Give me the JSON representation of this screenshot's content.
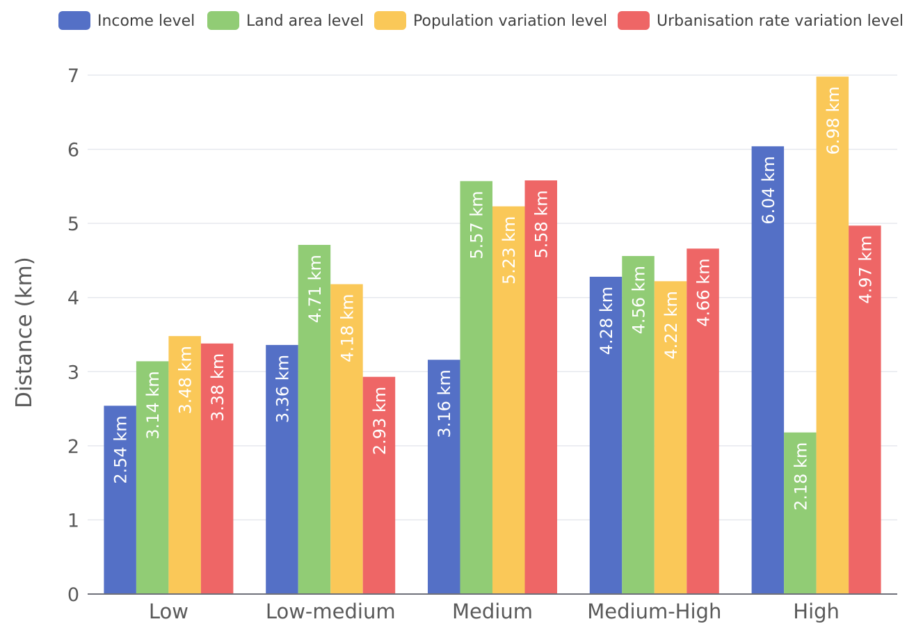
{
  "chart_data": {
    "type": "bar",
    "title": "",
    "xlabel": "",
    "ylabel": "Distance (km)",
    "ylim": [
      0,
      7
    ],
    "yticks": [
      "0",
      "1",
      "2",
      "3",
      "4",
      "5",
      "6",
      "7"
    ],
    "grid": true,
    "legend_position": "top",
    "categories": [
      "Low",
      "Low-medium",
      "Medium",
      "Medium-High",
      "High"
    ],
    "series": [
      {
        "name": "Income level",
        "color": "#5470c6",
        "values": [
          2.54,
          3.36,
          3.16,
          4.28,
          6.04
        ],
        "labels": [
          "2.54 km",
          "3.36 km",
          "3.16 km",
          "4.28 km",
          "6.04 km"
        ]
      },
      {
        "name": "Land area level",
        "color": "#91cc75",
        "values": [
          3.14,
          4.71,
          5.57,
          4.56,
          2.18
        ],
        "labels": [
          "3.14 km",
          "4.71 km",
          "5.57 km",
          "4.56 km",
          "2.18 km"
        ]
      },
      {
        "name": "Population variation level",
        "color": "#fac858",
        "values": [
          3.48,
          4.18,
          5.23,
          4.22,
          6.98
        ],
        "labels": [
          "3.48  km",
          "4.18 km",
          "5.23 km",
          "4.22 km",
          "6.98 km"
        ]
      },
      {
        "name": "Urbanisation rate variation level",
        "color": "#ee6666",
        "values": [
          3.38,
          2.93,
          5.58,
          4.66,
          4.97
        ],
        "labels": [
          "3.38 km",
          "2.93 km",
          "5.58 km",
          "4.66 km",
          "4.97 km"
        ]
      }
    ]
  }
}
